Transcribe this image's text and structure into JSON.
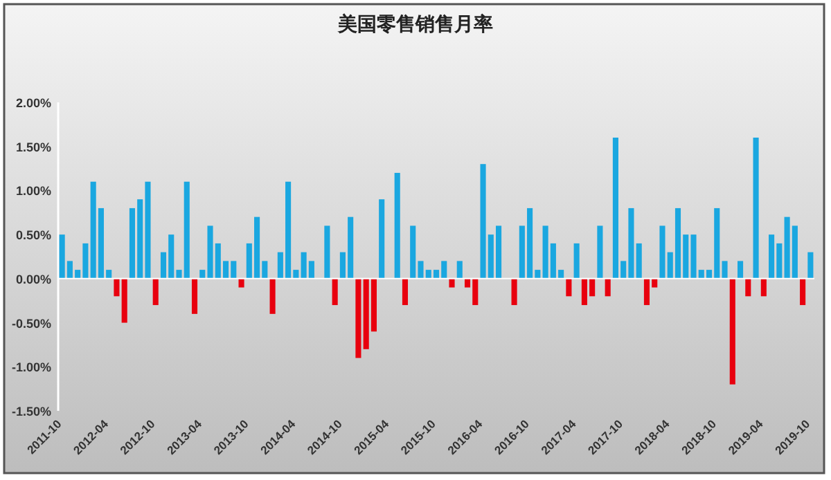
{
  "chart_data": {
    "type": "bar",
    "title": "美国零售销售月率",
    "categories": [
      "2011-10",
      null,
      null,
      null,
      null,
      null,
      "2012-04",
      null,
      null,
      null,
      null,
      null,
      "2012-10",
      null,
      null,
      null,
      null,
      null,
      "2013-04",
      null,
      null,
      null,
      null,
      null,
      "2013-10",
      null,
      null,
      null,
      null,
      null,
      "2014-04",
      null,
      null,
      null,
      null,
      null,
      "2014-10",
      null,
      null,
      null,
      null,
      null,
      "2015-04",
      null,
      null,
      null,
      null,
      null,
      "2015-10",
      null,
      null,
      null,
      null,
      null,
      "2016-04",
      null,
      null,
      null,
      null,
      null,
      "2016-10",
      null,
      null,
      null,
      null,
      null,
      "2017-04",
      null,
      null,
      null,
      null,
      null,
      "2017-10",
      null,
      null,
      null,
      null,
      null,
      "2018-04",
      null,
      null,
      null,
      null,
      null,
      "2018-10",
      null,
      null,
      null,
      null,
      null,
      "2019-04",
      null,
      null,
      null,
      null,
      null,
      "2019-10"
    ],
    "values": [
      0.5,
      0.2,
      0.1,
      0.4,
      1.1,
      0.8,
      0.1,
      -0.2,
      -0.5,
      0.8,
      0.9,
      1.1,
      -0.3,
      0.3,
      0.5,
      0.1,
      1.1,
      -0.4,
      0.1,
      0.6,
      0.4,
      0.2,
      0.2,
      -0.1,
      0.4,
      0.7,
      0.2,
      -0.4,
      0.3,
      1.1,
      0.1,
      0.3,
      0.2,
      0,
      0.6,
      -0.3,
      0.3,
      0.7,
      -0.9,
      -0.8,
      -0.6,
      0.9,
      0,
      1.2,
      -0.3,
      0.6,
      0.2,
      0.1,
      0.1,
      0.2,
      -0.1,
      0.2,
      -0.1,
      -0.3,
      1.3,
      0.5,
      0.6,
      0,
      -0.3,
      0.6,
      0.8,
      0.1,
      0.6,
      0.4,
      0.1,
      -0.2,
      0.4,
      -0.3,
      -0.2,
      0.6,
      -0.2,
      1.6,
      0.2,
      0.8,
      0.4,
      -0.3,
      -0.1,
      0.6,
      0.3,
      0.8,
      0.5,
      0.5,
      0.1,
      0.1,
      0.8,
      0.2,
      -1.2,
      0.2,
      -0.2,
      1.6,
      -0.2,
      0.5,
      0.4,
      0.7,
      0.6,
      -0.3,
      0.3
    ],
    "colors": [
      "#1aa7e0",
      "#1aa7e0",
      "#1aa7e0",
      "#1aa7e0",
      "#1aa7e0",
      "#1aa7e0",
      "#1aa7e0",
      "#e8000e",
      "#e8000e",
      "#1aa7e0",
      "#1aa7e0",
      "#1aa7e0",
      "#e8000e",
      "#1aa7e0",
      "#1aa7e0",
      "#1aa7e0",
      "#1aa7e0",
      "#e8000e",
      "#1aa7e0",
      "#1aa7e0",
      "#1aa7e0",
      "#1aa7e0",
      "#1aa7e0",
      "#e8000e",
      "#1aa7e0",
      "#1aa7e0",
      "#1aa7e0",
      "#e8000e",
      "#1aa7e0",
      "#1aa7e0",
      "#1aa7e0",
      "#1aa7e0",
      "#1aa7e0",
      "#1aa7e0",
      "#1aa7e0",
      "#e8000e",
      "#1aa7e0",
      "#1aa7e0",
      "#e8000e",
      "#e8000e",
      "#e8000e",
      "#1aa7e0",
      "#1aa7e0",
      "#1aa7e0",
      "#e8000e",
      "#1aa7e0",
      "#1aa7e0",
      "#1aa7e0",
      "#1aa7e0",
      "#1aa7e0",
      "#e8000e",
      "#1aa7e0",
      "#e8000e",
      "#e8000e",
      "#1aa7e0",
      "#1aa7e0",
      "#1aa7e0",
      "#1aa7e0",
      "#e8000e",
      "#1aa7e0",
      "#1aa7e0",
      "#1aa7e0",
      "#1aa7e0",
      "#1aa7e0",
      "#1aa7e0",
      "#e8000e",
      "#1aa7e0",
      "#e8000e",
      "#e8000e",
      "#1aa7e0",
      "#e8000e",
      "#1aa7e0",
      "#1aa7e0",
      "#1aa7e0",
      "#1aa7e0",
      "#e8000e",
      "#e8000e",
      "#1aa7e0",
      "#1aa7e0",
      "#1aa7e0",
      "#1aa7e0",
      "#1aa7e0",
      "#1aa7e0",
      "#1aa7e0",
      "#1aa7e0",
      "#1aa7e0",
      "#e8000e",
      "#1aa7e0",
      "#e8000e",
      "#1aa7e0",
      "#e8000e",
      "#1aa7e0",
      "#1aa7e0",
      "#1aa7e0",
      "#1aa7e0",
      "#e8000e",
      "#1aa7e0"
    ],
    "ylim": [
      -1.5,
      2.0
    ],
    "yticks": [
      {
        "value": -1.5,
        "label": "-1.50%"
      },
      {
        "value": -1.0,
        "label": "-1.00%"
      },
      {
        "value": -0.5,
        "label": "-0.50%"
      },
      {
        "value": 0,
        "label": "0.00%"
      },
      {
        "value": 0.5,
        "label": "0.50%"
      },
      {
        "value": 1.0,
        "label": "1.00%"
      },
      {
        "value": 1.5,
        "label": "1.50%"
      },
      {
        "value": 2.0,
        "label": "2.00%"
      }
    ]
  }
}
